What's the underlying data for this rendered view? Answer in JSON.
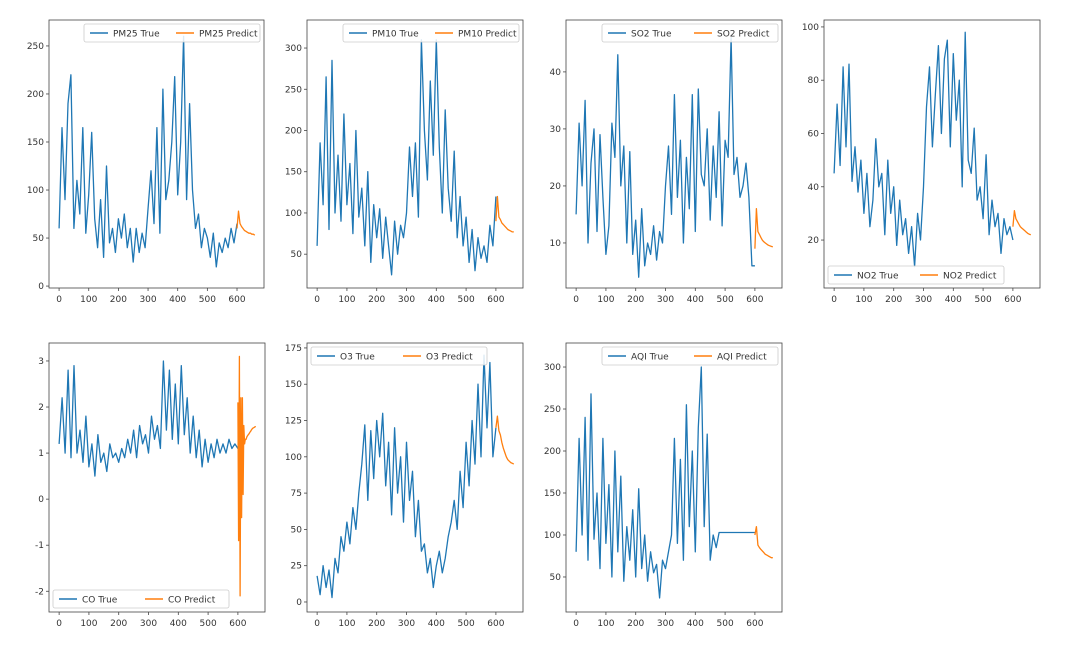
{
  "colors": {
    "true": "#1f77b4",
    "predict": "#ff7f0e"
  },
  "chart_data": [
    {
      "type": "line",
      "id": "pm25",
      "legend_placement": "top-right",
      "xlim": [
        -34,
        691
      ],
      "ylim": [
        -2,
        277
      ],
      "xticks": [
        0,
        100,
        200,
        300,
        400,
        500,
        600
      ],
      "yticks": [
        0,
        50,
        100,
        150,
        200,
        250
      ],
      "series": [
        {
          "name": "PM25 True",
          "x_start": 0,
          "x_step": 10,
          "values": [
            60,
            165,
            90,
            190,
            220,
            60,
            110,
            75,
            165,
            55,
            95,
            160,
            70,
            40,
            90,
            30,
            125,
            45,
            60,
            35,
            70,
            50,
            75,
            40,
            60,
            25,
            60,
            35,
            55,
            40,
            80,
            120,
            65,
            165,
            55,
            205,
            90,
            110,
            150,
            218,
            95,
            150,
            260,
            90,
            190,
            100,
            60,
            75,
            40,
            60,
            50,
            30,
            55,
            20,
            45,
            35,
            50,
            40,
            60,
            45,
            65
          ]
        },
        {
          "name": "PM25 Predict",
          "x_start": 600,
          "x_step": 5,
          "values": [
            60,
            78,
            65,
            62,
            60,
            58,
            57,
            56,
            55,
            55,
            54,
            54,
            53
          ]
        }
      ]
    },
    {
      "type": "line",
      "id": "pm10",
      "legend_placement": "top-right",
      "xlim": [
        -34,
        691
      ],
      "ylim": [
        9,
        334
      ],
      "xticks": [
        0,
        100,
        200,
        300,
        400,
        500,
        600
      ],
      "yticks": [
        50,
        100,
        150,
        200,
        250,
        300
      ],
      "series": [
        {
          "name": "PM10 True",
          "x_start": 0,
          "x_step": 10,
          "values": [
            60,
            185,
            110,
            265,
            80,
            285,
            100,
            170,
            90,
            220,
            110,
            160,
            75,
            200,
            95,
            130,
            60,
            150,
            40,
            110,
            70,
            105,
            45,
            95,
            60,
            25,
            90,
            50,
            85,
            70,
            100,
            180,
            120,
            185,
            95,
            310,
            200,
            140,
            260,
            170,
            310,
            180,
            100,
            225,
            130,
            90,
            175,
            70,
            120,
            60,
            95,
            40,
            80,
            30,
            70,
            45,
            60,
            40,
            85,
            60,
            120
          ]
        },
        {
          "name": "PM10 Predict",
          "x_start": 600,
          "x_step": 5,
          "values": [
            90,
            120,
            95,
            92,
            88,
            86,
            84,
            82,
            80,
            79,
            78,
            77,
            77
          ]
        }
      ]
    },
    {
      "type": "line",
      "id": "so2",
      "legend_placement": "top-right",
      "xlim": [
        -34,
        691
      ],
      "ylim": [
        2.1,
        49.1
      ],
      "xticks": [
        0,
        100,
        200,
        300,
        400,
        500,
        600
      ],
      "yticks": [
        10,
        20,
        30,
        40
      ],
      "series": [
        {
          "name": "SO2 True",
          "x_start": 0,
          "x_step": 10,
          "values": [
            15,
            31,
            20,
            35,
            10,
            24,
            30,
            12,
            29,
            18,
            8,
            13,
            31,
            25,
            43,
            20,
            27,
            10,
            26,
            8,
            14,
            4,
            16,
            6,
            10,
            8,
            13,
            7,
            12,
            10,
            20,
            27,
            15,
            36,
            18,
            28,
            10,
            25,
            16,
            36,
            12,
            37,
            22,
            20,
            30,
            14,
            27,
            18,
            33,
            13,
            28,
            25,
            46,
            22,
            25,
            18,
            20,
            24,
            18,
            6,
            6
          ]
        },
        {
          "name": "SO2 Predict",
          "x_start": 600,
          "x_step": 5,
          "values": [
            9,
            16,
            12,
            11.5,
            11,
            10.5,
            10.2,
            10,
            9.8,
            9.6,
            9.5,
            9.4,
            9.3
          ]
        }
      ]
    },
    {
      "type": "line",
      "id": "no2",
      "legend_placement": "bottom-left",
      "xlim": [
        -34,
        691
      ],
      "ylim": [
        2,
        102.6
      ],
      "xticks": [
        0,
        100,
        200,
        300,
        400,
        500,
        600
      ],
      "yticks": [
        20,
        40,
        60,
        80,
        100
      ],
      "series": [
        {
          "name": "NO2 True",
          "x_start": 0,
          "x_step": 10,
          "values": [
            45,
            71,
            48,
            85,
            55,
            86,
            42,
            55,
            38,
            50,
            30,
            45,
            25,
            35,
            58,
            40,
            45,
            22,
            50,
            30,
            40,
            18,
            35,
            22,
            28,
            15,
            25,
            10,
            30,
            20,
            40,
            70,
            85,
            55,
            75,
            93,
            60,
            88,
            95,
            55,
            90,
            65,
            80,
            40,
            98,
            50,
            45,
            62,
            35,
            40,
            28,
            52,
            22,
            35,
            25,
            30,
            15,
            28,
            22,
            25,
            20
          ]
        },
        {
          "name": "NO2 Predict",
          "x_start": 600,
          "x_step": 5,
          "values": [
            25,
            31,
            28,
            27,
            26,
            25,
            24.5,
            24,
            23.5,
            23,
            22.5,
            22.2,
            22
          ]
        }
      ]
    },
    {
      "type": "line",
      "id": "co",
      "legend_placement": "bottom-left",
      "xlim": [
        -34,
        691
      ],
      "ylim": [
        -2.45,
        3.39
      ],
      "xticks": [
        0,
        100,
        200,
        300,
        400,
        500,
        600
      ],
      "yticks": [
        -2,
        -1,
        0,
        1,
        2,
        3
      ],
      "series": [
        {
          "name": "CO True",
          "x_start": 0,
          "x_step": 10,
          "values": [
            1.2,
            2.2,
            1.0,
            2.8,
            0.9,
            2.9,
            1.0,
            1.5,
            0.8,
            1.8,
            0.7,
            1.2,
            0.5,
            1.4,
            0.8,
            1.0,
            0.6,
            1.2,
            0.9,
            1.0,
            0.8,
            1.1,
            0.9,
            1.3,
            1.0,
            1.5,
            0.9,
            1.6,
            1.2,
            1.4,
            1.0,
            1.8,
            1.3,
            1.6,
            1.1,
            3.0,
            1.5,
            2.8,
            1.3,
            2.5,
            1.2,
            2.9,
            1.4,
            2.2,
            1.0,
            1.8,
            0.9,
            1.5,
            0.7,
            1.3,
            0.8,
            1.2,
            0.9,
            1.3,
            1.0,
            1.2,
            1.0,
            1.3,
            1.1,
            1.2,
            1.1
          ]
        },
        {
          "name": "CO Predict",
          "x_start": 600,
          "x_step": 2.5,
          "values": [
            2.1,
            -0.9,
            3.1,
            -2.1,
            2.2,
            -0.4,
            2.2,
            0.1,
            1.6,
            1.2,
            1.3,
            1.3,
            1.35,
            1.38,
            1.4,
            1.42,
            1.45,
            1.47,
            1.5,
            1.52,
            1.54,
            1.55,
            1.56,
            1.57,
            1.58
          ]
        }
      ]
    },
    {
      "type": "line",
      "id": "o3",
      "legend_placement": "top-left",
      "xlim": [
        -34,
        691
      ],
      "ylim": [
        -6.9,
        178.4
      ],
      "xticks": [
        0,
        100,
        200,
        300,
        400,
        500,
        600
      ],
      "yticks": [
        0,
        25,
        50,
        75,
        100,
        125,
        150,
        175
      ],
      "series": [
        {
          "name": "O3 True",
          "x_start": 0,
          "x_step": 10,
          "values": [
            18,
            5,
            25,
            10,
            22,
            3,
            30,
            20,
            45,
            35,
            55,
            40,
            65,
            50,
            75,
            95,
            122,
            70,
            118,
            85,
            125,
            100,
            130,
            80,
            110,
            60,
            120,
            75,
            100,
            55,
            110,
            70,
            90,
            45,
            70,
            35,
            40,
            20,
            30,
            10,
            25,
            35,
            20,
            30,
            45,
            55,
            70,
            50,
            90,
            65,
            110,
            80,
            125,
            95,
            150,
            100,
            170,
            120,
            165,
            100,
            120
          ]
        },
        {
          "name": "O3 Predict",
          "x_start": 600,
          "x_step": 5,
          "values": [
            120,
            128,
            118,
            115,
            110,
            106,
            103,
            100,
            98,
            97,
            96,
            95.5,
            95
          ]
        }
      ]
    },
    {
      "type": "line",
      "id": "aqi",
      "legend_placement": "top-right",
      "xlim": [
        -34,
        691
      ],
      "ylim": [
        8.3,
        328.6
      ],
      "xticks": [
        0,
        100,
        200,
        300,
        400,
        500,
        600
      ],
      "yticks": [
        50,
        100,
        150,
        200,
        250,
        300
      ],
      "series": [
        {
          "name": "AQI True",
          "x_start": 0,
          "x_step": 10,
          "values": [
            80,
            215,
            100,
            240,
            70,
            268,
            95,
            150,
            60,
            215,
            90,
            160,
            50,
            200,
            80,
            170,
            45,
            110,
            70,
            130,
            50,
            155,
            60,
            100,
            45,
            80,
            55,
            65,
            25,
            70,
            60,
            80,
            100,
            215,
            90,
            190,
            70,
            255,
            110,
            200,
            80,
            228,
            300,
            110,
            220,
            70,
            100,
            85,
            103,
            103,
            103,
            103,
            103,
            103,
            103,
            103,
            103,
            103,
            103,
            103,
            103
          ]
        },
        {
          "name": "AQI Predict",
          "x_start": 600,
          "x_step": 5,
          "values": [
            100,
            110,
            88,
            85,
            83,
            81,
            79,
            77,
            76,
            75,
            74,
            73,
            73
          ]
        }
      ]
    }
  ]
}
